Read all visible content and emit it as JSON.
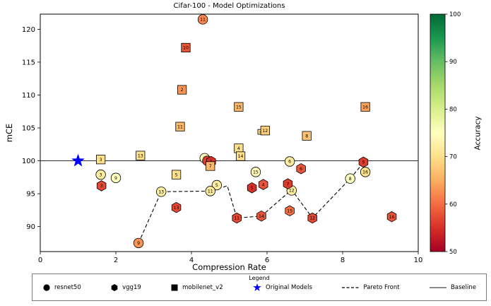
{
  "chart_data": {
    "type": "scatter",
    "title": "Cifar-100 - Model Optimizations",
    "xlabel": "Compression Rate",
    "ylabel": "mCE",
    "axes": {
      "xlim": [
        0,
        10
      ],
      "ylim": [
        86.2,
        122.3
      ],
      "xticks": [
        0,
        2,
        4,
        6,
        8,
        10
      ],
      "yticks": [
        90,
        95,
        100,
        105,
        110,
        115,
        120
      ],
      "grid": false
    },
    "colorbar": {
      "label": "Accuracy",
      "min": 50,
      "max": 100,
      "ticks": [
        100,
        90,
        80,
        70,
        60,
        50
      ],
      "colormap": "RdYlGn"
    },
    "baseline": {
      "label": "Baseline",
      "y": 100,
      "color": "#2b2b2b"
    },
    "original_models": {
      "label": "Original Models",
      "x": 1,
      "y": 100,
      "marker": "star",
      "color": "#0000ff"
    },
    "pareto_front": {
      "label": "Pareto Front",
      "style": "dashed",
      "path": [
        [
          2.6,
          87.5
        ],
        [
          3.2,
          95.3
        ],
        [
          4.5,
          95.4
        ],
        [
          4.95,
          96.2
        ],
        [
          5.2,
          91.3
        ],
        [
          5.85,
          91.6
        ],
        [
          6.65,
          95.6
        ],
        [
          7.2,
          91.3
        ],
        [
          8.2,
          97.3
        ],
        [
          8.55,
          99.7
        ]
      ]
    },
    "legend": {
      "title": "Legend",
      "position": "bottom"
    },
    "series": [
      {
        "name": "resnet50",
        "marker": "circle",
        "points": [
          {
            "x": 4.3,
            "y": 121.5,
            "accuracy": 62,
            "label": "11"
          },
          {
            "x": 4.35,
            "y": 100.4,
            "accuracy": 75,
            "label": "2"
          },
          {
            "x": 1.6,
            "y": 97.9,
            "accuracy": 72,
            "label": "3"
          },
          {
            "x": 2.0,
            "y": 97.4,
            "accuracy": 75,
            "label": "9"
          },
          {
            "x": 4.42,
            "y": 100.0,
            "accuracy": 56,
            "label": "1"
          },
          {
            "x": 4.67,
            "y": 96.3,
            "accuracy": 72,
            "label": "5"
          },
          {
            "x": 4.5,
            "y": 95.4,
            "accuracy": 72,
            "label": "11"
          },
          {
            "x": 3.2,
            "y": 95.3,
            "accuracy": 72,
            "label": "13"
          },
          {
            "x": 5.7,
            "y": 98.3,
            "accuracy": 74,
            "label": "15"
          },
          {
            "x": 6.6,
            "y": 99.9,
            "accuracy": 72,
            "label": "6"
          },
          {
            "x": 6.65,
            "y": 95.5,
            "accuracy": 72,
            "label": "12"
          },
          {
            "x": 8.2,
            "y": 97.3,
            "accuracy": 75,
            "label": "8"
          },
          {
            "x": 8.6,
            "y": 98.3,
            "accuracy": 70,
            "label": "16"
          },
          {
            "x": 2.6,
            "y": 87.5,
            "accuracy": 63,
            "label": "9"
          }
        ]
      },
      {
        "name": "vgg19",
        "marker": "hexagon",
        "points": [
          {
            "x": 1.62,
            "y": 96.2,
            "accuracy": 57,
            "label": "3"
          },
          {
            "x": 4.52,
            "y": 99.9,
            "accuracy": 55,
            "label": "1"
          },
          {
            "x": 3.6,
            "y": 92.9,
            "accuracy": 57,
            "label": "13"
          },
          {
            "x": 5.6,
            "y": 95.9,
            "accuracy": 55,
            "label": "5"
          },
          {
            "x": 5.9,
            "y": 96.4,
            "accuracy": 58,
            "label": "4"
          },
          {
            "x": 5.2,
            "y": 91.3,
            "accuracy": 57,
            "label": "11"
          },
          {
            "x": 5.85,
            "y": 91.6,
            "accuracy": 58,
            "label": "14"
          },
          {
            "x": 6.55,
            "y": 96.5,
            "accuracy": 56,
            "label": "7"
          },
          {
            "x": 6.9,
            "y": 98.8,
            "accuracy": 58,
            "label": "6"
          },
          {
            "x": 6.6,
            "y": 92.4,
            "accuracy": 60,
            "label": "15"
          },
          {
            "x": 7.2,
            "y": 91.3,
            "accuracy": 57,
            "label": "12"
          },
          {
            "x": 8.55,
            "y": 99.8,
            "accuracy": 56,
            "label": "9"
          },
          {
            "x": 9.3,
            "y": 91.5,
            "accuracy": 58,
            "label": "16"
          }
        ]
      },
      {
        "name": "mobilenet_v2",
        "marker": "square",
        "points": [
          {
            "x": 3.85,
            "y": 117.2,
            "accuracy": 58,
            "label": "10"
          },
          {
            "x": 3.75,
            "y": 110.8,
            "accuracy": 63,
            "label": "2"
          },
          {
            "x": 5.25,
            "y": 108.2,
            "accuracy": 66,
            "label": "15"
          },
          {
            "x": 8.6,
            "y": 108.2,
            "accuracy": 64,
            "label": "16"
          },
          {
            "x": 3.7,
            "y": 105.2,
            "accuracy": 66,
            "label": "11"
          },
          {
            "x": 5.82,
            "y": 104.4,
            "accuracy": 70,
            "label": "6",
            "size": 0.55
          },
          {
            "x": 5.95,
            "y": 104.6,
            "accuracy": 68,
            "label": "12"
          },
          {
            "x": 7.05,
            "y": 103.8,
            "accuracy": 67,
            "label": "8"
          },
          {
            "x": 5.25,
            "y": 101.9,
            "accuracy": 70,
            "label": "4"
          },
          {
            "x": 5.3,
            "y": 100.7,
            "accuracy": 70,
            "label": "14"
          },
          {
            "x": 2.65,
            "y": 100.8,
            "accuracy": 70,
            "label": "13"
          },
          {
            "x": 1.6,
            "y": 100.2,
            "accuracy": 70,
            "label": "3"
          },
          {
            "x": 3.6,
            "y": 97.9,
            "accuracy": 70,
            "label": "5"
          },
          {
            "x": 4.5,
            "y": 99.2,
            "accuracy": 66,
            "label": "7"
          }
        ]
      }
    ]
  }
}
